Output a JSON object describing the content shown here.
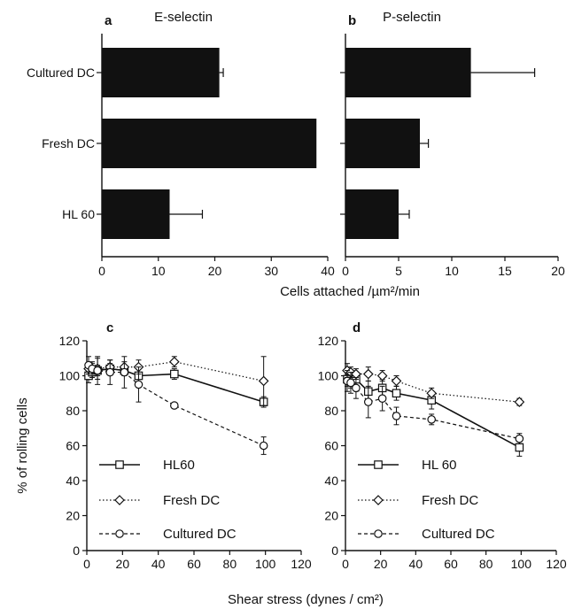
{
  "figure": {
    "shared_xlabel_top": "Cells attached /µm²/min",
    "shared_xlabel_bottom": "Shear stress (dynes / cm²)"
  },
  "chart_data": [
    {
      "panel": "a",
      "type": "bar",
      "orientation": "horizontal",
      "title": "E-selectin",
      "categories": [
        "Cultured DC",
        "Fresh DC",
        "HL 60"
      ],
      "values": [
        20.8,
        38,
        12
      ],
      "errors": [
        0.7,
        0,
        5.8
      ],
      "xlabel": "Cells attached /µm²/min",
      "xlim": [
        0,
        40
      ],
      "xticks": [
        "0",
        "10",
        "20",
        "30",
        "40"
      ],
      "bar_color": "#111111",
      "grid": false
    },
    {
      "panel": "b",
      "type": "bar",
      "orientation": "horizontal",
      "title": "P-selectin",
      "categories": [
        "Cultured DC",
        "Fresh DC",
        "HL 60"
      ],
      "values": [
        11.8,
        7,
        5
      ],
      "errors": [
        6.0,
        0.8,
        1.0
      ],
      "xlabel": "Cells attached /µm²/min",
      "xlim": [
        0,
        20
      ],
      "xticks": [
        "0",
        "5",
        "10",
        "15",
        "20"
      ],
      "bar_color": "#111111",
      "grid": false
    },
    {
      "panel": "c",
      "type": "line",
      "xlabel": "Shear stress (dynes / cm²)",
      "ylabel": "% of rolling cells",
      "xlim": [
        0,
        120
      ],
      "ylim": [
        0,
        120
      ],
      "xticks": [
        "0",
        "20",
        "40",
        "60",
        "80",
        "100",
        "120"
      ],
      "yticks": [
        "0",
        "20",
        "40",
        "60",
        "80",
        "100",
        "120"
      ],
      "legend_position": "bottom-left",
      "series": [
        {
          "name": "HL60",
          "style": "solid",
          "marker": "square",
          "x": [
            1,
            3,
            6,
            13,
            21,
            29,
            49,
            99
          ],
          "y": [
            100,
            102,
            103,
            104,
            103,
            100,
            101,
            85
          ],
          "err": [
            4,
            3,
            3,
            3,
            3,
            6,
            3,
            3
          ]
        },
        {
          "name": "Fresh DC",
          "style": "dotted",
          "marker": "diamond",
          "x": [
            1,
            3,
            6,
            13,
            21,
            29,
            49,
            99
          ],
          "y": [
            104,
            104,
            104,
            105,
            105,
            105,
            108,
            97
          ],
          "err": [
            3,
            3,
            6,
            4,
            3,
            4,
            3,
            14
          ]
        },
        {
          "name": "Cultured DC",
          "style": "dashed",
          "marker": "circle",
          "x": [
            1,
            3,
            6,
            13,
            21,
            29,
            49,
            99
          ],
          "y": [
            106,
            104,
            103,
            102,
            102,
            95,
            83,
            60
          ],
          "err": [
            5,
            4,
            8,
            7,
            9,
            10,
            0,
            5
          ]
        }
      ]
    },
    {
      "panel": "d",
      "type": "line",
      "xlabel": "Shear stress (dynes / cm²)",
      "ylabel": "% of rolling cells",
      "xlim": [
        0,
        120
      ],
      "ylim": [
        0,
        120
      ],
      "xticks": [
        "0",
        "20",
        "40",
        "60",
        "80",
        "100",
        "120"
      ],
      "yticks": [
        "0",
        "20",
        "40",
        "60",
        "80",
        "100",
        "120"
      ],
      "legend_position": "bottom-left",
      "series": [
        {
          "name": "HL 60",
          "style": "solid",
          "marker": "square",
          "x": [
            1,
            3,
            6,
            13,
            21,
            29,
            49,
            99
          ],
          "y": [
            98,
            97,
            98,
            91,
            93,
            90,
            86,
            59
          ],
          "err": [
            4,
            4,
            4,
            6,
            5,
            4,
            5,
            5
          ]
        },
        {
          "name": "Fresh DC",
          "style": "dotted",
          "marker": "diamond",
          "x": [
            1,
            3,
            6,
            13,
            21,
            29,
            49,
            99
          ],
          "y": [
            103,
            102,
            101,
            101,
            100,
            97,
            90,
            85
          ],
          "err": [
            4,
            3,
            3,
            4,
            3,
            3,
            3,
            2
          ]
        },
        {
          "name": "Cultured DC",
          "style": "dashed",
          "marker": "circle",
          "x": [
            1,
            3,
            6,
            13,
            21,
            29,
            49,
            99
          ],
          "y": [
            97,
            96,
            93,
            85,
            87,
            77,
            75,
            64
          ],
          "err": [
            6,
            6,
            6,
            9,
            7,
            5,
            3,
            3
          ]
        }
      ]
    }
  ]
}
